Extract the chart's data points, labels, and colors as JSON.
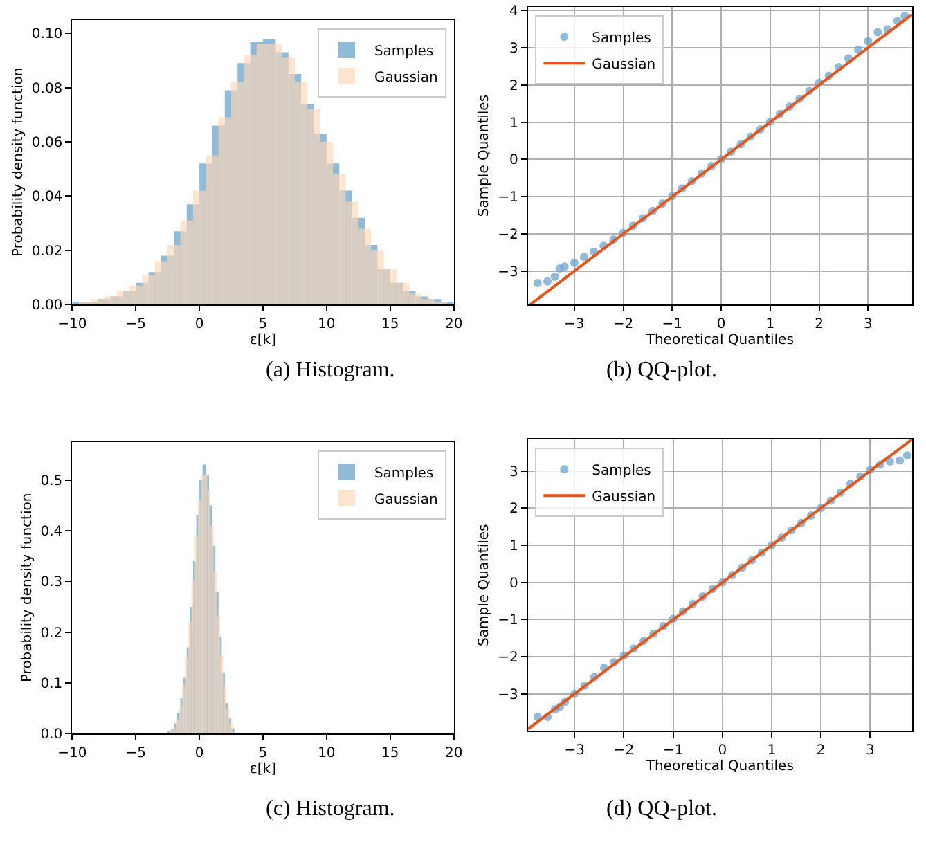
{
  "chart_data": [
    {
      "type": "histogram",
      "xlabel": "ε[k]",
      "ylabel": "Probability density function",
      "annotations": [
        "(a) Histogram."
      ],
      "legend": "top right",
      "grid": false,
      "xlim": [
        -10,
        20
      ],
      "xticks": [
        {
          "value": -10,
          "label": "−10"
        },
        {
          "value": -5,
          "label": "−5"
        },
        0,
        5,
        10,
        15,
        20
      ],
      "ylim": [
        0,
        0.105
      ],
      "yticks": [
        {
          "value": 0,
          "label": "0.00"
        },
        {
          "value": 0.02,
          "label": "0.02"
        },
        {
          "value": 0.04,
          "label": "0.04"
        },
        {
          "value": 0.06,
          "label": "0.06"
        },
        {
          "value": 0.08,
          "label": "0.08"
        },
        {
          "value": 0.1,
          "label": "0.10"
        }
      ],
      "bins": [
        -10,
        -9,
        -8,
        -7,
        -6,
        -5,
        -4,
        -3,
        -2,
        -1,
        0,
        1,
        2,
        3,
        4,
        5,
        6,
        7,
        8,
        9,
        10,
        11,
        12,
        13,
        14,
        15,
        16,
        17,
        18,
        19,
        20
      ],
      "series": [
        {
          "name": "Samples",
          "color": "#8fbbd9",
          "values": [
            0.001,
            0.001,
            0.002,
            0.003,
            0.005,
            0.008,
            0.012,
            0.018,
            0.027,
            0.037,
            0.052,
            0.066,
            0.079,
            0.089,
            0.097,
            0.098,
            0.093,
            0.085,
            0.074,
            0.063,
            0.052,
            0.042,
            0.032,
            0.022,
            0.013,
            0.008,
            0.005,
            0.003,
            0.002,
            0.001
          ]
        },
        {
          "name": "Gaussian",
          "color": "#ffd8b6",
          "bins": [
            -9.5,
            -8.5,
            -7.5,
            -6.5,
            -5.5,
            -4.5,
            -3.5,
            -2.5,
            -1.5,
            -0.5,
            0.5,
            1.5,
            2.5,
            3.5,
            4.5,
            5.5,
            6.5,
            7.5,
            8.5,
            9.5,
            10.5,
            11.5,
            12.5,
            13.5,
            14.5,
            15.5,
            16.5,
            17.5,
            18.5,
            19.5
          ],
          "values": [
            0.001,
            0.002,
            0.003,
            0.005,
            0.007,
            0.011,
            0.016,
            0.022,
            0.031,
            0.042,
            0.055,
            0.069,
            0.082,
            0.092,
            0.096,
            0.096,
            0.091,
            0.082,
            0.072,
            0.06,
            0.048,
            0.038,
            0.028,
            0.02,
            0.013,
            0.008,
            0.004,
            0.002,
            0.001
          ]
        }
      ]
    },
    {
      "type": "scatter",
      "xlabel": "Theoretical Quantiles",
      "ylabel": "Sample Quantiles",
      "annotations": [
        "(b) QQ-plot."
      ],
      "legend": "top left",
      "grid": true,
      "xlim": [
        -3.95,
        3.9
      ],
      "xticks": [
        {
          "value": -3,
          "label": "−3"
        },
        {
          "value": -2,
          "label": "−2"
        },
        {
          "value": -1,
          "label": "−1"
        },
        0,
        1,
        2,
        3
      ],
      "ylim": [
        -3.9,
        4.1
      ],
      "yticks": [
        {
          "value": -3,
          "label": "−3"
        },
        {
          "value": -2,
          "label": "−2"
        },
        {
          "value": -1,
          "label": "−1"
        },
        0,
        1,
        2,
        3,
        4
      ],
      "series": [
        {
          "name": "Samples",
          "type": "scatter",
          "marker": "circle",
          "color": "#6aa3cc",
          "x": [
            -3.75,
            -3.55,
            -3.4,
            -3.3,
            -3.2,
            -3.0,
            -2.8,
            -2.6,
            -2.4,
            -2.2,
            -2.0,
            -1.8,
            -1.6,
            -1.4,
            -1.2,
            -1.0,
            -0.8,
            -0.6,
            -0.4,
            -0.2,
            0,
            0.2,
            0.4,
            0.6,
            0.8,
            1.0,
            1.2,
            1.4,
            1.6,
            1.8,
            2.0,
            2.2,
            2.4,
            2.6,
            2.8,
            3.0,
            3.2,
            3.4,
            3.6,
            3.75
          ],
          "values": [
            -3.32,
            -3.28,
            -3.15,
            -2.93,
            -2.88,
            -2.78,
            -2.62,
            -2.48,
            -2.32,
            -2.15,
            -1.97,
            -1.78,
            -1.58,
            -1.38,
            -1.18,
            -0.98,
            -0.78,
            -0.58,
            -0.38,
            -0.18,
            0.01,
            0.21,
            0.41,
            0.61,
            0.81,
            1.01,
            1.22,
            1.42,
            1.63,
            1.84,
            2.06,
            2.25,
            2.48,
            2.72,
            2.95,
            3.18,
            3.42,
            3.5,
            3.72,
            3.85
          ]
        },
        {
          "name": "Gaussian",
          "type": "line",
          "color": "#e8541a",
          "x": [
            -3.9,
            3.9
          ],
          "values": [
            -3.9,
            3.9
          ]
        }
      ]
    },
    {
      "type": "histogram",
      "xlabel": "ε[k]",
      "ylabel": "Probability density function",
      "annotations": [
        "(c) Histogram."
      ],
      "legend": "top right",
      "grid": false,
      "xlim": [
        -10,
        20
      ],
      "xticks": [
        {
          "value": -10,
          "label": "−10"
        },
        {
          "value": -5,
          "label": "−5"
        },
        0,
        5,
        10,
        15,
        20
      ],
      "ylim": [
        0,
        0.575
      ],
      "yticks": [
        {
          "value": 0,
          "label": "0.0"
        },
        {
          "value": 0.1,
          "label": "0.1"
        },
        {
          "value": 0.2,
          "label": "0.2"
        },
        {
          "value": 0.3,
          "label": "0.3"
        },
        {
          "value": 0.4,
          "label": "0.4"
        },
        {
          "value": 0.5,
          "label": "0.5"
        }
      ],
      "bins": [
        -2.5,
        -2.25,
        -2.0,
        -1.75,
        -1.5,
        -1.25,
        -1.0,
        -0.75,
        -0.5,
        -0.25,
        0,
        0.25,
        0.5,
        0.75,
        1.0,
        1.25,
        1.5,
        1.75,
        2.0,
        2.25,
        2.5,
        2.75
      ],
      "series": [
        {
          "name": "Samples",
          "color": "#8fbbd9",
          "values": [
            0.003,
            0.008,
            0.02,
            0.04,
            0.07,
            0.11,
            0.17,
            0.25,
            0.34,
            0.43,
            0.5,
            0.53,
            0.51,
            0.45,
            0.37,
            0.28,
            0.19,
            0.12,
            0.06,
            0.03,
            0.01
          ]
        },
        {
          "name": "Gaussian",
          "color": "#ffd8b6",
          "bins": [
            -2.375,
            -2.125,
            -1.875,
            -1.625,
            -1.375,
            -1.125,
            -0.875,
            -0.625,
            -0.375,
            -0.125,
            0.125,
            0.375,
            0.625,
            0.875,
            1.125,
            1.375,
            1.625,
            1.875,
            2.125,
            2.375,
            2.625
          ],
          "values": [
            0.004,
            0.012,
            0.028,
            0.055,
            0.095,
            0.15,
            0.22,
            0.3,
            0.39,
            0.46,
            0.51,
            0.51,
            0.48,
            0.41,
            0.32,
            0.23,
            0.155,
            0.095,
            0.05,
            0.02
          ]
        }
      ]
    },
    {
      "type": "scatter",
      "xlabel": "Theoretical Quantiles",
      "ylabel": "Sample Quantiles",
      "annotations": [
        "(d) QQ-plot."
      ],
      "legend": "top left",
      "grid": true,
      "xlim": [
        -3.95,
        3.85
      ],
      "xticks": [
        {
          "value": -3,
          "label": "−3"
        },
        {
          "value": -2,
          "label": "−2"
        },
        {
          "value": -1,
          "label": "−1"
        },
        0,
        1,
        2,
        3
      ],
      "ylim": [
        -4.0,
        3.85
      ],
      "yticks": [
        {
          "value": -3,
          "label": "−3"
        },
        {
          "value": -2,
          "label": "−2"
        },
        {
          "value": -1,
          "label": "−1"
        },
        0,
        1,
        2,
        3
      ],
      "series": [
        {
          "name": "Samples",
          "type": "scatter",
          "marker": "circle",
          "color": "#6aa3cc",
          "x": [
            -3.75,
            -3.55,
            -3.4,
            -3.3,
            -3.2,
            -3.0,
            -2.8,
            -2.6,
            -2.4,
            -2.2,
            -2.0,
            -1.8,
            -1.6,
            -1.4,
            -1.2,
            -1.0,
            -0.8,
            -0.6,
            -0.4,
            -0.2,
            0,
            0.2,
            0.4,
            0.6,
            0.8,
            1.0,
            1.2,
            1.4,
            1.6,
            1.8,
            2.0,
            2.2,
            2.4,
            2.6,
            2.8,
            3.0,
            3.2,
            3.4,
            3.6,
            3.75
          ],
          "values": [
            -3.62,
            -3.62,
            -3.42,
            -3.35,
            -3.22,
            -3.0,
            -2.78,
            -2.55,
            -2.3,
            -2.15,
            -1.97,
            -1.78,
            -1.58,
            -1.38,
            -1.18,
            -0.98,
            -0.78,
            -0.58,
            -0.38,
            -0.18,
            0.0,
            0.2,
            0.4,
            0.6,
            0.8,
            1.0,
            1.2,
            1.4,
            1.6,
            1.8,
            2.0,
            2.2,
            2.42,
            2.65,
            2.85,
            3.03,
            3.17,
            3.25,
            3.28,
            3.42
          ]
        },
        {
          "name": "Gaussian",
          "type": "line",
          "color": "#e8541a",
          "x": [
            -3.95,
            3.85
          ],
          "values": [
            -3.95,
            3.85
          ]
        }
      ]
    }
  ]
}
